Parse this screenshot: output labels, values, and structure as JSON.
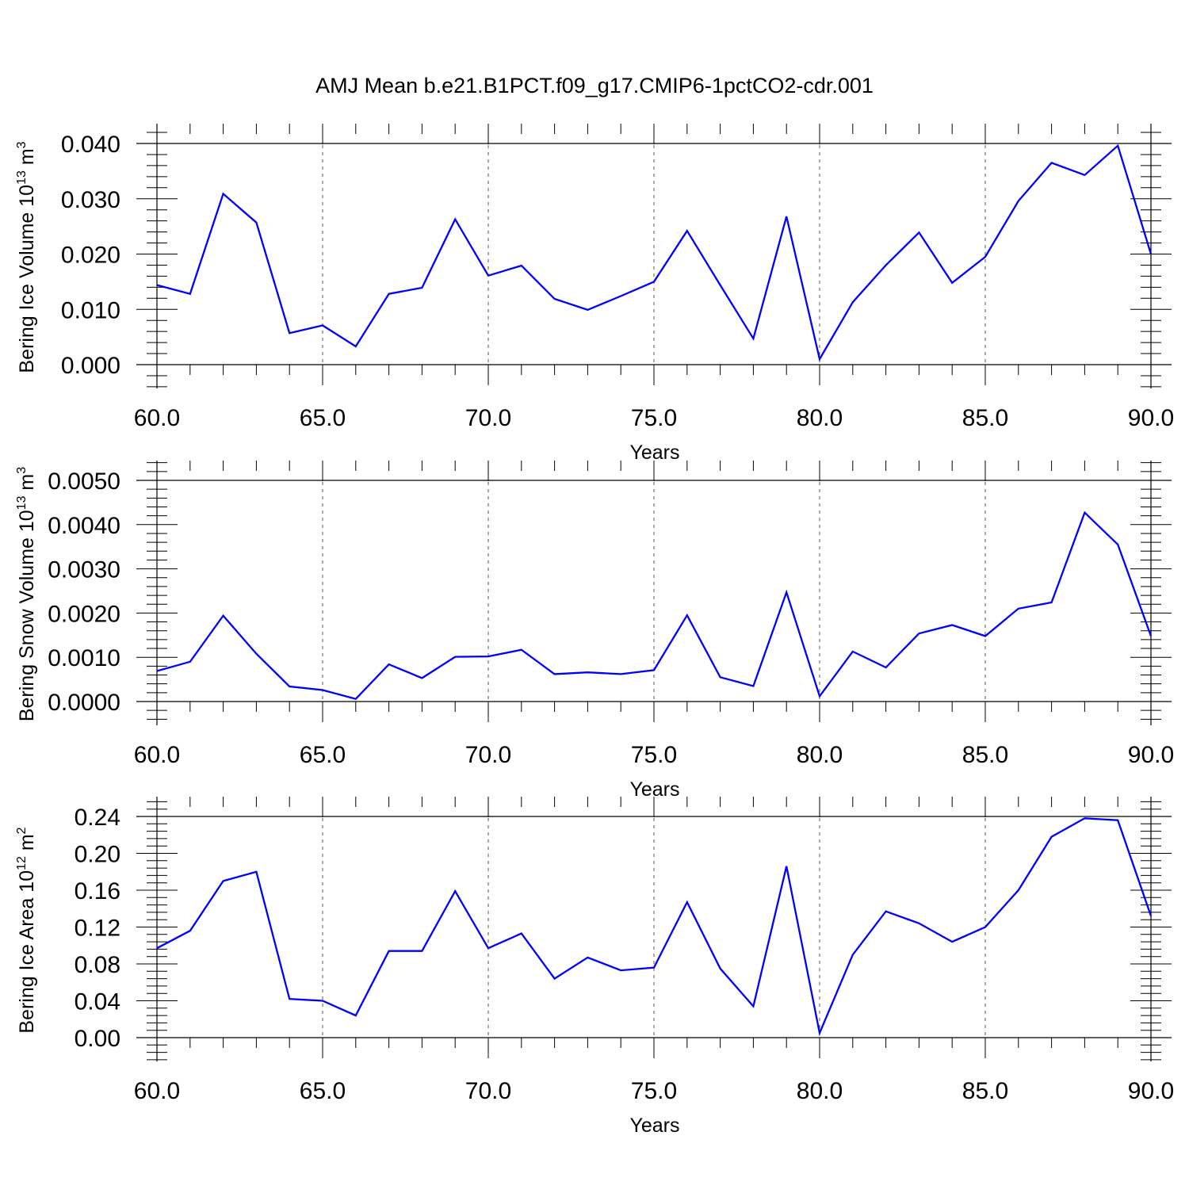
{
  "title": "AMJ Mean b.e21.B1PCT.f09_g17.CMIP6-1pctCO2-cdr.001",
  "colors": {
    "line": "#0000ff",
    "axis": "#000000",
    "grid": "#555555"
  },
  "chart_data": [
    {
      "type": "line",
      "ylabel_main": "Bering Ice Volume 10",
      "ylabel_sup": "13",
      "ylabel_unit": " m",
      "ylabel_unit_sup": "3",
      "xlabel": "Years",
      "xlim": [
        60,
        90
      ],
      "ylim": [
        0,
        0.04
      ],
      "xticks": [
        "60.0",
        "65.0",
        "70.0",
        "75.0",
        "80.0",
        "85.0",
        "90.0"
      ],
      "yticks": [
        "0.000",
        "0.010",
        "0.020",
        "0.030",
        "0.040"
      ],
      "grid": "vertical dashed at major x ticks",
      "x": [
        60,
        61,
        62,
        63,
        64,
        65,
        66,
        67,
        68,
        69,
        70,
        71,
        72,
        73,
        74,
        75,
        76,
        77,
        78,
        79,
        80,
        81,
        82,
        83,
        84,
        85,
        86,
        87,
        88,
        89,
        90
      ],
      "series": [
        {
          "values": [
            0.0144,
            0.0128,
            0.0309,
            0.0257,
            0.0057,
            0.0071,
            0.0033,
            0.0128,
            0.0139,
            0.0263,
            0.0161,
            0.0179,
            0.0119,
            0.0099,
            0.0124,
            0.015,
            0.0242,
            0.0144,
            0.0047,
            0.0268,
            0.001,
            0.0113,
            0.018,
            0.0239,
            0.0148,
            0.0195,
            0.0296,
            0.0365,
            0.0343,
            0.0396,
            0.02
          ]
        }
      ]
    },
    {
      "type": "line",
      "ylabel_main": "Bering Snow Volume 10",
      "ylabel_sup": "13",
      "ylabel_unit": " m",
      "ylabel_unit_sup": "3",
      "xlabel": "Years",
      "xlim": [
        60,
        90
      ],
      "ylim": [
        0,
        0.005
      ],
      "xticks": [
        "60.0",
        "65.0",
        "70.0",
        "75.0",
        "80.0",
        "85.0",
        "90.0"
      ],
      "yticks": [
        "0.0000",
        "0.0010",
        "0.0020",
        "0.0030",
        "0.0040",
        "0.0050"
      ],
      "grid": "vertical dashed at major x ticks",
      "x": [
        60,
        61,
        62,
        63,
        64,
        65,
        66,
        67,
        68,
        69,
        70,
        71,
        72,
        73,
        74,
        75,
        76,
        77,
        78,
        79,
        80,
        81,
        82,
        83,
        84,
        85,
        86,
        87,
        88,
        89,
        90
      ],
      "series": [
        {
          "values": [
            0.00069,
            0.0009,
            0.00194,
            0.00108,
            0.00034,
            0.00026,
            6e-05,
            0.00084,
            0.00053,
            0.00101,
            0.00102,
            0.00117,
            0.00062,
            0.00066,
            0.00062,
            0.00071,
            0.00195,
            0.00055,
            0.00035,
            0.00247,
            0.00012,
            0.00113,
            0.00077,
            0.00154,
            0.00173,
            0.00148,
            0.0021,
            0.00224,
            0.00427,
            0.00355,
            0.00148
          ]
        }
      ]
    },
    {
      "type": "line",
      "ylabel_main": "Bering Ice Area 10",
      "ylabel_sup": "12",
      "ylabel_unit": " m",
      "ylabel_unit_sup": "2",
      "xlabel": "Years",
      "xlim": [
        60,
        90
      ],
      "ylim": [
        0,
        0.24
      ],
      "xticks": [
        "60.0",
        "65.0",
        "70.0",
        "75.0",
        "80.0",
        "85.0",
        "90.0"
      ],
      "yticks": [
        "0.00",
        "0.04",
        "0.08",
        "0.12",
        "0.16",
        "0.20",
        "0.24"
      ],
      "grid": "vertical dashed at major x ticks",
      "x": [
        60,
        61,
        62,
        63,
        64,
        65,
        66,
        67,
        68,
        69,
        70,
        71,
        72,
        73,
        74,
        75,
        76,
        77,
        78,
        79,
        80,
        81,
        82,
        83,
        84,
        85,
        86,
        87,
        88,
        89,
        90
      ],
      "series": [
        {
          "values": [
            0.097,
            0.116,
            0.17,
            0.18,
            0.042,
            0.04,
            0.024,
            0.094,
            0.094,
            0.159,
            0.097,
            0.113,
            0.064,
            0.087,
            0.073,
            0.076,
            0.147,
            0.075,
            0.034,
            0.186,
            0.005,
            0.09,
            0.137,
            0.124,
            0.104,
            0.12,
            0.16,
            0.218,
            0.238,
            0.236,
            0.132
          ]
        }
      ]
    }
  ]
}
